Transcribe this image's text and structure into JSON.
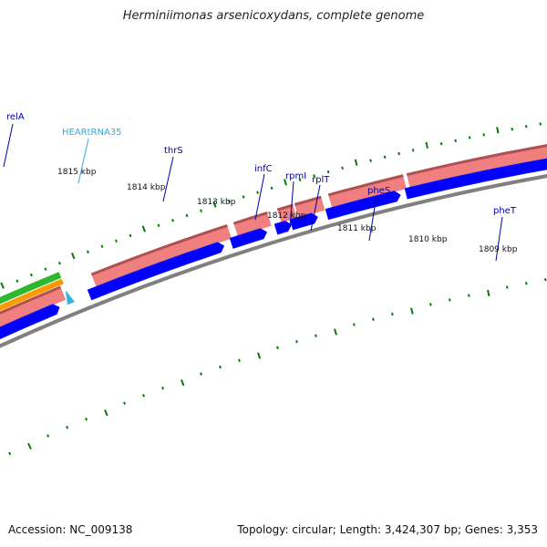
{
  "title": "Herminiimonas arsenicoxydans, complete genome",
  "accession_label": "Accession: NC_009138",
  "summary_label": "Topology: circular; Length: 3,424,307 bp; Genes: 3,353",
  "colors": {
    "backbone": "#808080",
    "cds": "#0000ff",
    "gene": "#f08080",
    "gene_edge": "#b05050",
    "trna": "#33b5e5",
    "rrna_green": "#2eb82e",
    "rrna_orange": "#ff9900",
    "tick": "#0a7a0a",
    "label_default": "#0000aa",
    "label_trna": "#33aadd"
  },
  "scale_labels": [
    "1815 kbp",
    "1814 kbp",
    "1813 kbp",
    "1812 kbp",
    "1811 kbp",
    "1810 kbp",
    "1809 kbp"
  ],
  "feature_labels": [
    {
      "name": "relA",
      "type": "gene"
    },
    {
      "name": "HEARtRNA35",
      "type": "tRNA"
    },
    {
      "name": "thrS",
      "type": "gene"
    },
    {
      "name": "infC",
      "type": "gene"
    },
    {
      "name": "rpmI",
      "type": "gene"
    },
    {
      "name": "rplT",
      "type": "gene"
    },
    {
      "name": "pheS",
      "type": "gene"
    },
    {
      "name": "pheT",
      "type": "gene"
    }
  ]
}
